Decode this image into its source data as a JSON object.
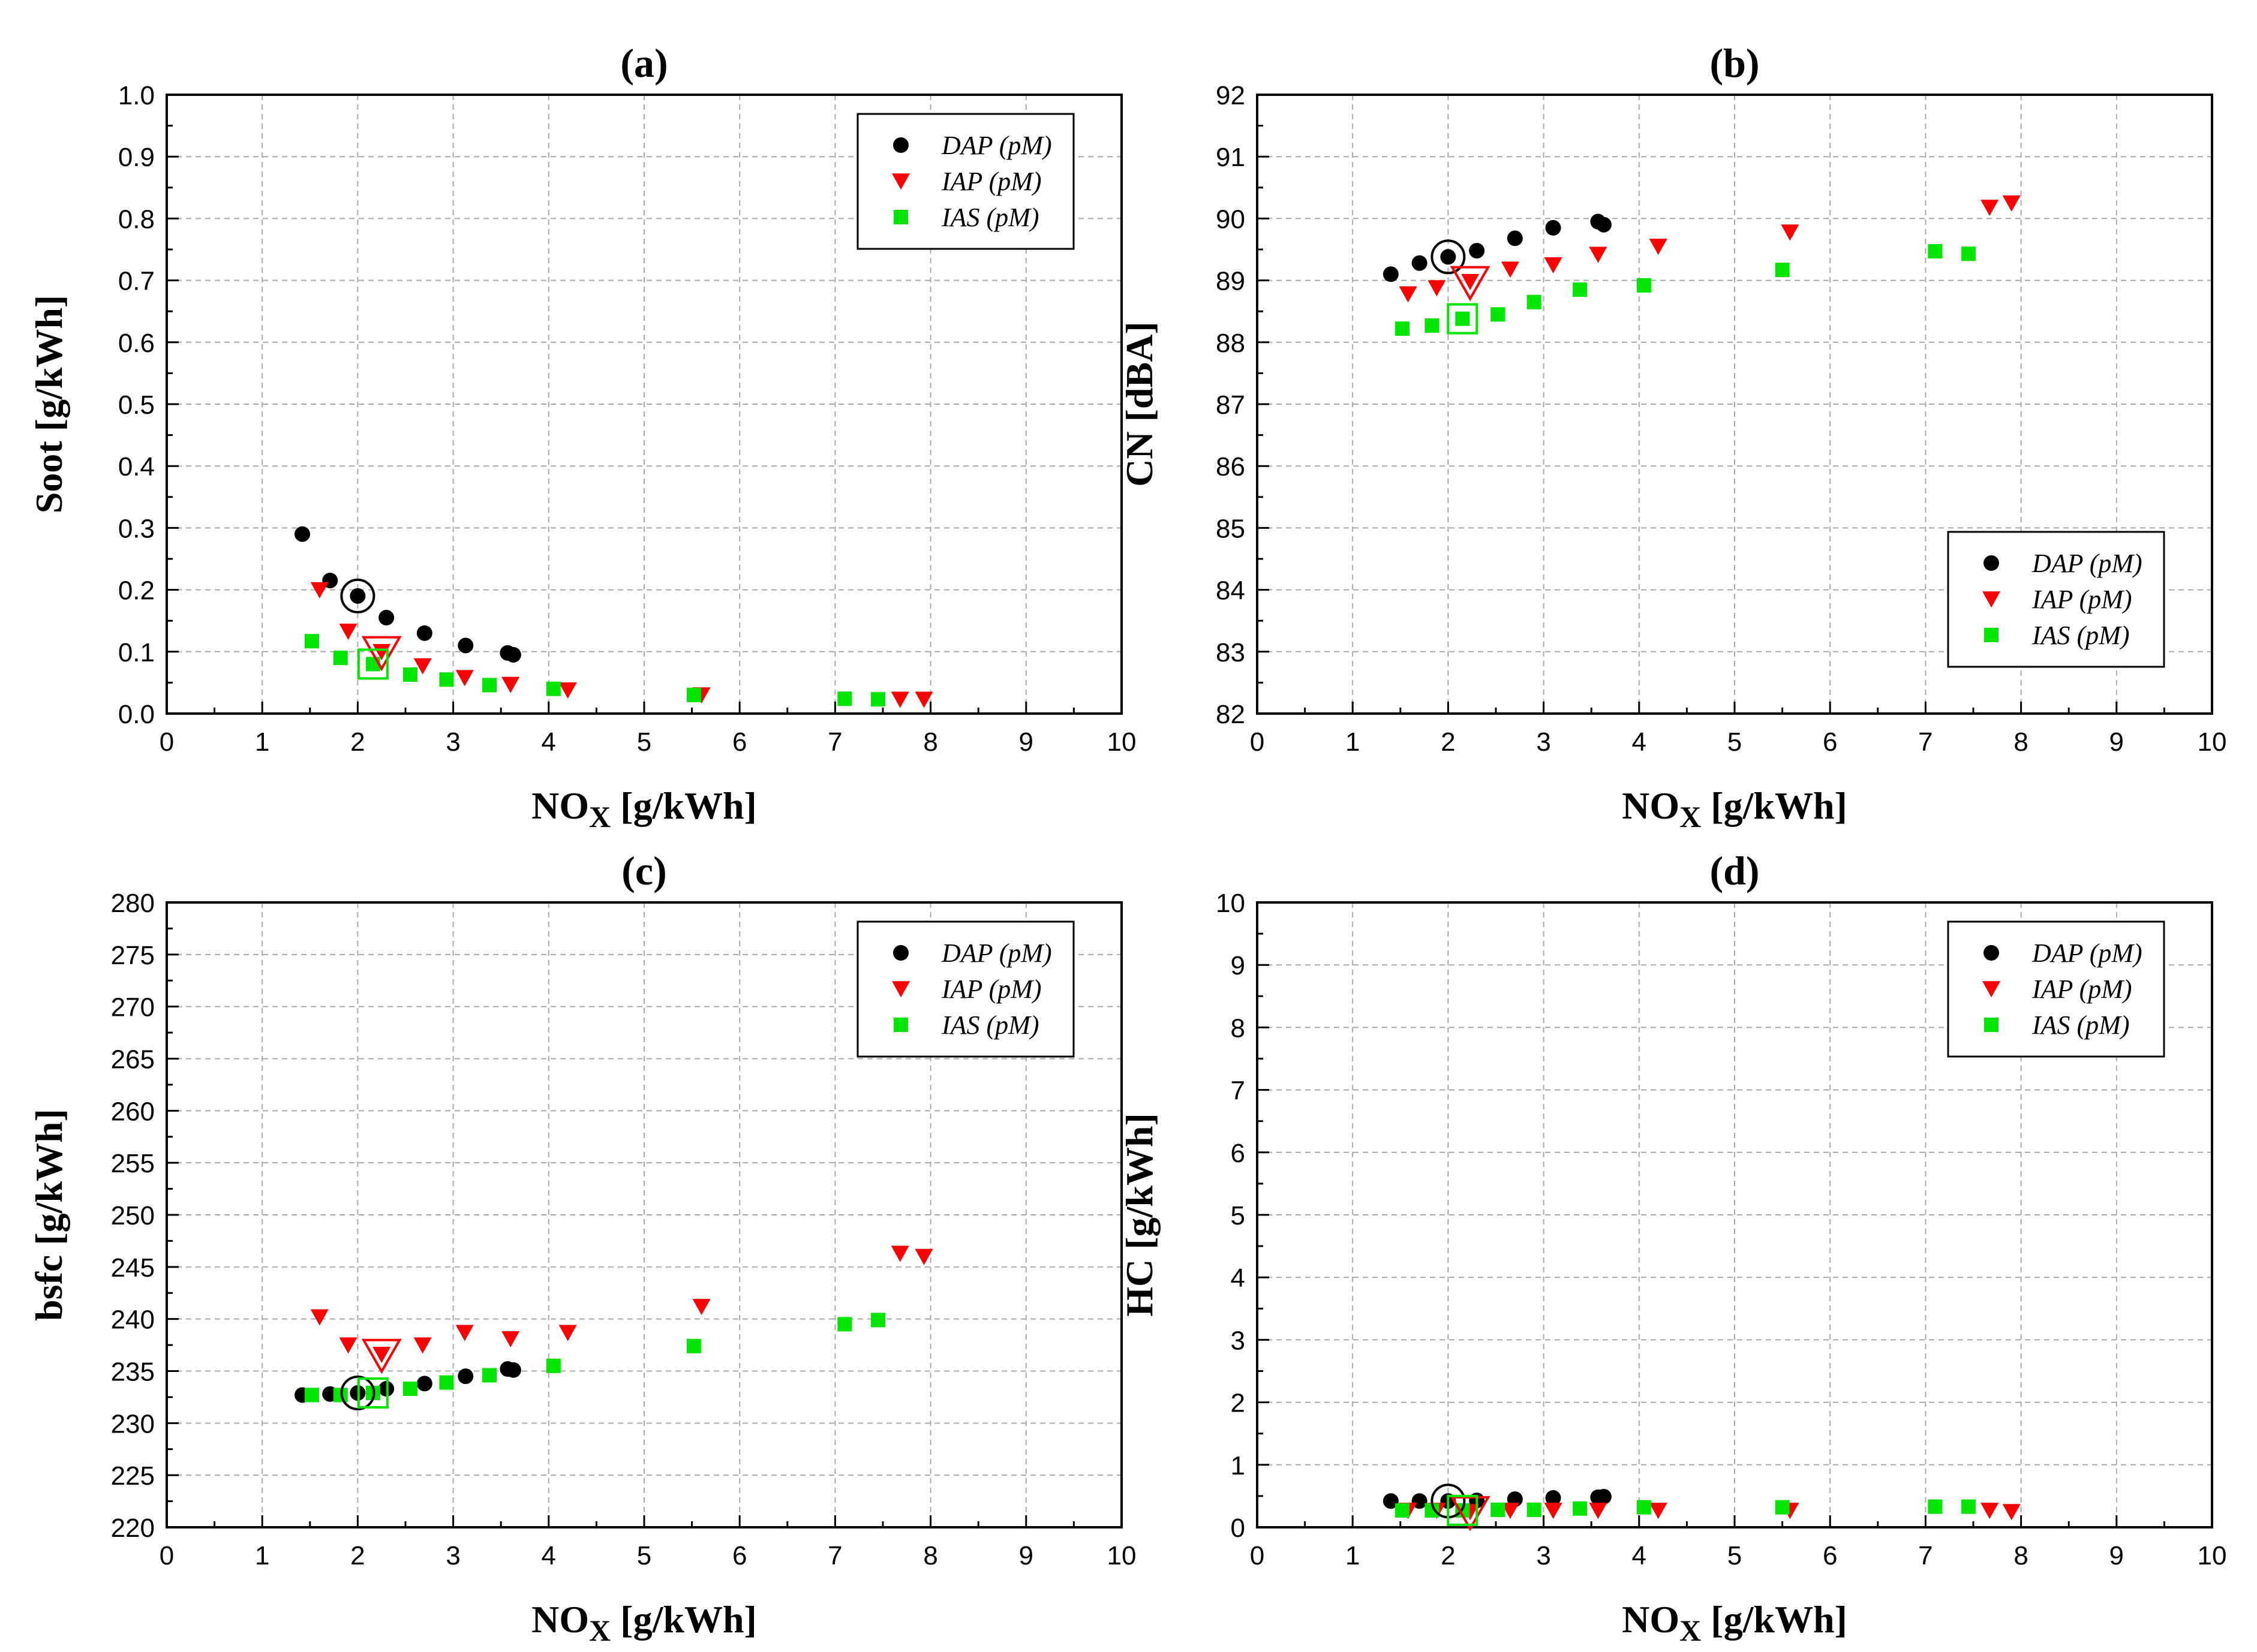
{
  "series_styles": [
    {
      "name": "DAP (pM)",
      "marker": "circle",
      "color": "#000000"
    },
    {
      "name": "IAP (pM)",
      "marker": "triangle-down",
      "color": "#ff0000"
    },
    {
      "name": "IAS (pM)",
      "marker": "square",
      "color": "#00e600"
    }
  ],
  "chart_data": [
    {
      "type": "scatter",
      "title": "(a)",
      "xlabel": "NOX [g/kWh]",
      "ylabel": "Soot [g/kWh]",
      "xlim": [
        0,
        10
      ],
      "ylim": [
        0,
        1.0
      ],
      "xticks": [
        0,
        1,
        2,
        3,
        4,
        5,
        6,
        7,
        8,
        9,
        10
      ],
      "yticks": [
        0.0,
        0.1,
        0.2,
        0.3,
        0.4,
        0.5,
        0.6,
        0.7,
        0.8,
        0.9,
        1.0
      ],
      "yticklabels": [
        "0.0",
        "0.1",
        "0.2",
        "0.3",
        "0.4",
        "0.5",
        "0.6",
        "0.7",
        "0.8",
        "0.9",
        "1.0"
      ],
      "legend_position": "top-right",
      "series": [
        {
          "name": "DAP (pM)",
          "x": [
            1.42,
            1.71,
            2.0,
            2.3,
            2.7,
            3.13,
            3.57,
            3.63
          ],
          "y": [
            0.29,
            0.215,
            0.19,
            0.155,
            0.13,
            0.11,
            0.098,
            0.095
          ]
        },
        {
          "name": "IAP (pM)",
          "x": [
            1.6,
            1.9,
            2.25,
            2.68,
            3.12,
            3.6,
            4.2,
            5.6,
            7.68,
            7.93
          ],
          "y": [
            0.2,
            0.133,
            0.1,
            0.077,
            0.058,
            0.047,
            0.038,
            0.03,
            0.023,
            0.023
          ]
        },
        {
          "name": "IAS (pM)",
          "x": [
            1.52,
            1.82,
            2.16,
            2.55,
            2.93,
            3.38,
            4.05,
            5.52,
            7.1,
            7.45
          ],
          "y": [
            0.117,
            0.09,
            0.08,
            0.063,
            0.055,
            0.046,
            0.04,
            0.03,
            0.024,
            0.023
          ]
        }
      ],
      "highlighted": [
        {
          "series": "DAP (pM)",
          "x": 2.0,
          "y": 0.19
        },
        {
          "series": "IAP (pM)",
          "x": 2.25,
          "y": 0.1
        },
        {
          "series": "IAS (pM)",
          "x": 2.16,
          "y": 0.08
        }
      ]
    },
    {
      "type": "scatter",
      "title": "(b)",
      "xlabel": "NOX [g/kWh]",
      "ylabel": "CN [dBA]",
      "xlim": [
        0,
        10
      ],
      "ylim": [
        82,
        92
      ],
      "xticks": [
        0,
        1,
        2,
        3,
        4,
        5,
        6,
        7,
        8,
        9,
        10
      ],
      "yticks": [
        82,
        83,
        84,
        85,
        86,
        87,
        88,
        89,
        90,
        91,
        92
      ],
      "yticklabels": [
        "82",
        "83",
        "84",
        "85",
        "86",
        "87",
        "88",
        "89",
        "90",
        "91",
        "92"
      ],
      "legend_position": "bottom-right",
      "series": [
        {
          "name": "DAP (pM)",
          "x": [
            1.4,
            1.7,
            2.0,
            2.3,
            2.7,
            3.1,
            3.57,
            3.63
          ],
          "y": [
            89.1,
            89.28,
            89.38,
            89.48,
            89.68,
            89.85,
            89.95,
            89.9
          ]
        },
        {
          "name": "IAP (pM)",
          "x": [
            1.58,
            1.88,
            2.23,
            2.65,
            3.1,
            3.57,
            4.2,
            5.58,
            7.67,
            7.9
          ],
          "y": [
            88.78,
            88.88,
            88.98,
            89.18,
            89.25,
            89.42,
            89.55,
            89.78,
            90.18,
            90.25
          ]
        },
        {
          "name": "IAS (pM)",
          "x": [
            1.52,
            1.83,
            2.15,
            2.52,
            2.9,
            3.38,
            4.05,
            5.5,
            7.1,
            7.45
          ],
          "y": [
            88.22,
            88.27,
            88.38,
            88.45,
            88.65,
            88.85,
            88.92,
            89.17,
            89.47,
            89.43
          ]
        }
      ],
      "highlighted": [
        {
          "series": "DAP (pM)",
          "x": 2.0,
          "y": 89.38
        },
        {
          "series": "IAP (pM)",
          "x": 2.23,
          "y": 88.98
        },
        {
          "series": "IAS (pM)",
          "x": 2.15,
          "y": 88.38
        }
      ]
    },
    {
      "type": "scatter",
      "title": "(c)",
      "xlabel": "NOX [g/kWh]",
      "ylabel": "bsfc [g/kWh]",
      "xlim": [
        0,
        10
      ],
      "ylim": [
        220,
        280
      ],
      "xticks": [
        0,
        1,
        2,
        3,
        4,
        5,
        6,
        7,
        8,
        9,
        10
      ],
      "yticks": [
        220,
        225,
        230,
        235,
        240,
        245,
        250,
        255,
        260,
        265,
        270,
        275,
        280
      ],
      "yticklabels": [
        "220",
        "225",
        "230",
        "235",
        "240",
        "245",
        "250",
        "255",
        "260",
        "265",
        "270",
        "275",
        "280"
      ],
      "legend_position": "top-right",
      "series": [
        {
          "name": "DAP (pM)",
          "x": [
            1.42,
            1.71,
            2.0,
            2.3,
            2.7,
            3.13,
            3.57,
            3.63
          ],
          "y": [
            232.7,
            232.8,
            232.9,
            233.3,
            233.8,
            234.5,
            235.2,
            235.1
          ]
        },
        {
          "name": "IAP (pM)",
          "x": [
            1.6,
            1.9,
            2.25,
            2.68,
            3.12,
            3.6,
            4.2,
            5.6,
            7.68,
            7.93
          ],
          "y": [
            240.2,
            237.5,
            236.6,
            237.5,
            238.7,
            238.1,
            238.7,
            241.2,
            246.3,
            246.0
          ]
        },
        {
          "name": "IAS (pM)",
          "x": [
            1.52,
            1.82,
            2.16,
            2.55,
            2.93,
            3.38,
            4.05,
            5.52,
            7.1,
            7.45
          ],
          "y": [
            232.7,
            232.7,
            232.9,
            233.3,
            233.9,
            234.6,
            235.5,
            237.4,
            239.5,
            239.9
          ]
        }
      ],
      "highlighted": [
        {
          "series": "DAP (pM)",
          "x": 2.0,
          "y": 232.9
        },
        {
          "series": "IAP (pM)",
          "x": 2.25,
          "y": 236.6
        },
        {
          "series": "IAS (pM)",
          "x": 2.16,
          "y": 232.9
        }
      ]
    },
    {
      "type": "scatter",
      "title": "(d)",
      "xlabel": "NOX [g/kWh]",
      "ylabel": "HC [g/kWh]",
      "xlim": [
        0,
        10
      ],
      "ylim": [
        0,
        10
      ],
      "xticks": [
        0,
        1,
        2,
        3,
        4,
        5,
        6,
        7,
        8,
        9,
        10
      ],
      "yticks": [
        0,
        1,
        2,
        3,
        4,
        5,
        6,
        7,
        8,
        9,
        10
      ],
      "yticklabels": [
        "0",
        "1",
        "2",
        "3",
        "4",
        "5",
        "6",
        "7",
        "8",
        "9",
        "10"
      ],
      "legend_position": "top-right",
      "series": [
        {
          "name": "DAP (pM)",
          "x": [
            1.4,
            1.7,
            2.0,
            2.3,
            2.7,
            3.1,
            3.57,
            3.63
          ],
          "y": [
            0.42,
            0.42,
            0.42,
            0.43,
            0.45,
            0.47,
            0.48,
            0.49
          ]
        },
        {
          "name": "IAP (pM)",
          "x": [
            1.58,
            1.88,
            2.23,
            2.65,
            3.1,
            3.57,
            4.2,
            5.58,
            7.67,
            7.9
          ],
          "y": [
            0.27,
            0.27,
            0.25,
            0.27,
            0.27,
            0.27,
            0.27,
            0.27,
            0.27,
            0.25
          ]
        },
        {
          "name": "IAS (pM)",
          "x": [
            1.52,
            1.83,
            2.15,
            2.52,
            2.9,
            3.38,
            4.05,
            5.5,
            7.1,
            7.45
          ],
          "y": [
            0.27,
            0.27,
            0.27,
            0.28,
            0.28,
            0.3,
            0.32,
            0.32,
            0.33,
            0.33
          ]
        }
      ],
      "highlighted": [
        {
          "series": "DAP (pM)",
          "x": 2.0,
          "y": 0.42
        },
        {
          "series": "IAP (pM)",
          "x": 2.23,
          "y": 0.25
        },
        {
          "series": "IAS (pM)",
          "x": 2.15,
          "y": 0.27
        }
      ]
    }
  ]
}
